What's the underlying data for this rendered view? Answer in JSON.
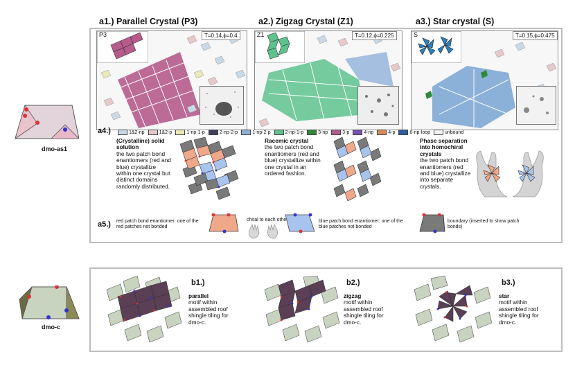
{
  "left": {
    "top_label": "dmo-as1",
    "bottom_label": "dmo-c"
  },
  "top": {
    "titles": [
      "a1.) Parallel Crystal (P3)",
      "a2.) Zigzag Crystal (Z1)",
      "a3.) Star crystal (S)"
    ],
    "tags": [
      "P3",
      "Z1",
      "S"
    ],
    "params": [
      "T=0.14,ϕ=0.4",
      "T=0.12,ϕ=0.225",
      "T=0.15,ϕ=0.475"
    ],
    "legend_label": "a4.)",
    "legend": [
      {
        "name": "1&2-np",
        "color": "#c9d9e6"
      },
      {
        "name": "1&2-p",
        "color": "#e6c9c9"
      },
      {
        "name": "1-np-1-p",
        "color": "#e9e9b8"
      },
      {
        "name": "2-np-2-p",
        "color": "#3d3d5c"
      },
      {
        "name": "1-np-2-p",
        "color": "#8fb0d8"
      },
      {
        "name": "2-np-1-p",
        "color": "#5ec28e"
      },
      {
        "name": "3-np",
        "color": "#2e8a3a"
      },
      {
        "name": "3-p",
        "color": "#b65b8c"
      },
      {
        "name": "4-np",
        "color": "#7b4fb0"
      },
      {
        "name": "4-p",
        "color": "#d98a5a"
      },
      {
        "name": "6-np-loop",
        "color": "#2a5fa0"
      },
      {
        "name": "unbound",
        "color": "#f2f2f2"
      }
    ],
    "desc1_title": "(Crystalline) solid solution",
    "desc1_body": "the two patch bond enantiomers (red and blue) crystallize within one crystal but distinct domains randomly distributed.",
    "desc2_title": "Racemic crystal",
    "desc2_body": "the two patch bond enantiomers (red and blue) crystallize within one crystal in an ordered fashion.",
    "desc3_title": "Phase separation into homochiral crystals",
    "desc3_body": "the two patch bond enantiomers (red and blue) crystallize into separate crystals.",
    "a5_label": "a5.)",
    "red_note": "red patch bond enantiomer: one of the red patches not bonded",
    "chiral_note": "chiral to each other",
    "blue_note": "blue patch bond enantiomer: one of the blue patches not bonded",
    "boundary_note": "boundary (inserted to show patch bonds)"
  },
  "bottom": {
    "labels": [
      "b1.)",
      "b2.)",
      "b3.)"
    ],
    "motif_words": [
      "parallel",
      "zigzag",
      "star"
    ],
    "motif_body": "motif within assembled roof shingle tiling for dmo-c."
  }
}
